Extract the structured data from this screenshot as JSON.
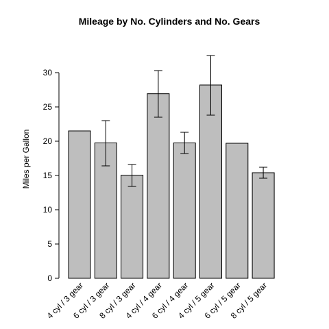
{
  "chart_data": {
    "type": "bar",
    "title": "Mileage by No. Cylinders and No. Gears",
    "xlabel": "",
    "ylabel": "Miles per Gallon",
    "ylim": [
      0,
      30
    ],
    "yticks": [
      0,
      5,
      10,
      15,
      20,
      25,
      30
    ],
    "grid": false,
    "categories": [
      "4 cyl / 3 gear",
      "6 cyl / 3 gear",
      "8 cyl / 3 gear",
      "4 cyl / 4 gear",
      "6 cyl / 4 gear",
      "4 cyl / 5 gear",
      "6 cyl / 5 gear",
      "8 cyl / 5 gear"
    ],
    "values": [
      21.5,
      19.75,
      15.05,
      26.93,
      19.75,
      28.2,
      19.7,
      15.4
    ],
    "error_low": [
      null,
      16.4,
      13.4,
      23.5,
      18.2,
      23.8,
      null,
      14.6
    ],
    "error_high": [
      null,
      23.0,
      16.6,
      30.3,
      21.3,
      32.5,
      null,
      16.2
    ],
    "colors": {
      "bar_fill": "#bebebe",
      "bar_stroke": "#000000"
    }
  }
}
